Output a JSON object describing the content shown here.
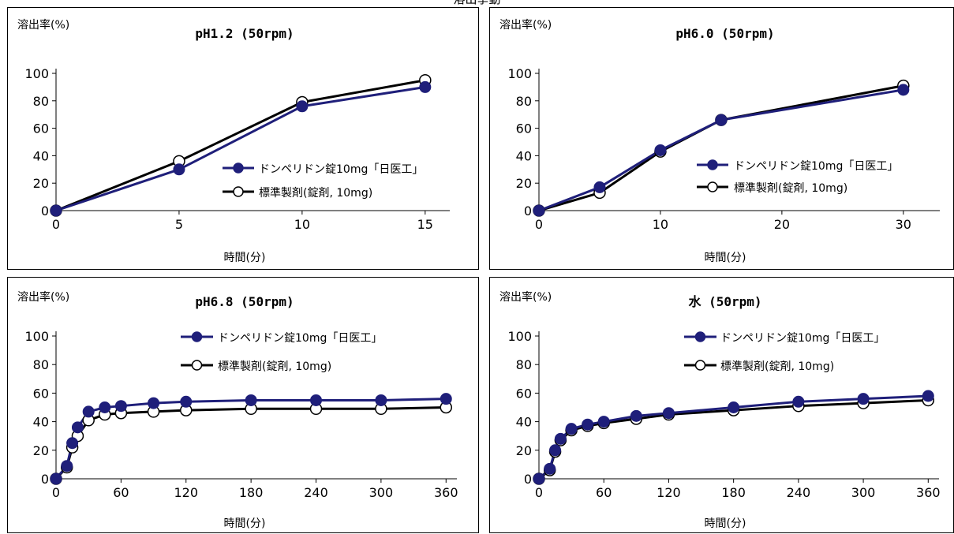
{
  "page": {
    "title": "溶出挙動"
  },
  "chart_data": [
    {
      "type": "line",
      "title": "pH1.2 (50rpm)",
      "ylabel": "溶出率(%)",
      "xlabel": "時間(分)",
      "xlim": [
        0,
        16
      ],
      "ylim": [
        0,
        100
      ],
      "xticks": [
        0,
        5,
        10,
        15
      ],
      "yticks": [
        0,
        20,
        40,
        60,
        80,
        100
      ],
      "grid": false,
      "legend": "center-right",
      "series": [
        {
          "name": "ドンペリドン錠10mg「日医工」",
          "color": "#1f1f7a",
          "marker": "filled",
          "x": [
            0,
            5,
            10,
            15
          ],
          "values": [
            0,
            30,
            76,
            90
          ]
        },
        {
          "name": "標準製剤(錠剤, 10mg)",
          "color": "#000000",
          "marker": "open",
          "x": [
            0,
            5,
            10,
            15
          ],
          "values": [
            0,
            36,
            79,
            95
          ]
        }
      ]
    },
    {
      "type": "line",
      "title": "pH6.0 (50rpm)",
      "ylabel": "溶出率(%)",
      "xlabel": "時間(分)",
      "xlim": [
        0,
        33
      ],
      "ylim": [
        0,
        100
      ],
      "xticks": [
        0,
        10,
        20,
        30
      ],
      "yticks": [
        0,
        20,
        40,
        60,
        80,
        100
      ],
      "grid": false,
      "legend": "center-right",
      "series": [
        {
          "name": "ドンペリドン錠10mg「日医工」",
          "color": "#1f1f7a",
          "marker": "filled",
          "x": [
            0,
            5,
            10,
            15,
            30
          ],
          "values": [
            0,
            17,
            44,
            66,
            88
          ]
        },
        {
          "name": "標準製剤(錠剤, 10mg)",
          "color": "#000000",
          "marker": "open",
          "x": [
            0,
            5,
            10,
            15,
            30
          ],
          "values": [
            0,
            13,
            43,
            66,
            91
          ]
        }
      ]
    },
    {
      "type": "line",
      "title": "pH6.8 (50rpm)",
      "ylabel": "溶出率(%)",
      "xlabel": "時間(分)",
      "xlim": [
        0,
        370
      ],
      "ylim": [
        0,
        100
      ],
      "xticks": [
        0,
        60,
        120,
        180,
        240,
        300,
        360
      ],
      "yticks": [
        0,
        20,
        40,
        60,
        80,
        100
      ],
      "grid": false,
      "legend": "top-center",
      "series": [
        {
          "name": "ドンペリドン錠10mg「日医工」",
          "color": "#1f1f7a",
          "marker": "filled",
          "x": [
            0,
            10,
            15,
            20,
            30,
            45,
            60,
            90,
            120,
            180,
            240,
            300,
            360
          ],
          "values": [
            0,
            9,
            25,
            36,
            47,
            50,
            51,
            53,
            54,
            55,
            55,
            55,
            56
          ]
        },
        {
          "name": "標準製剤(錠剤, 10mg)",
          "color": "#000000",
          "marker": "open",
          "x": [
            0,
            10,
            15,
            20,
            30,
            45,
            60,
            90,
            120,
            180,
            240,
            300,
            360
          ],
          "values": [
            0,
            8,
            22,
            30,
            41,
            45,
            46,
            47,
            48,
            49,
            49,
            49,
            50
          ]
        }
      ]
    },
    {
      "type": "line",
      "title": "水 (50rpm)",
      "ylabel": "溶出率(%)",
      "xlabel": "時間(分)",
      "xlim": [
        0,
        370
      ],
      "ylim": [
        0,
        100
      ],
      "xticks": [
        0,
        60,
        120,
        180,
        240,
        300,
        360
      ],
      "yticks": [
        0,
        20,
        40,
        60,
        80,
        100
      ],
      "grid": false,
      "legend": "top-center",
      "series": [
        {
          "name": "ドンペリドン錠10mg「日医工」",
          "color": "#1f1f7a",
          "marker": "filled",
          "x": [
            0,
            10,
            15,
            20,
            30,
            45,
            60,
            90,
            120,
            180,
            240,
            300,
            360
          ],
          "values": [
            0,
            7,
            20,
            28,
            35,
            38,
            40,
            44,
            46,
            50,
            54,
            56,
            58
          ]
        },
        {
          "name": "標準製剤(錠剤, 10mg)",
          "color": "#000000",
          "marker": "open",
          "x": [
            0,
            10,
            15,
            20,
            30,
            45,
            60,
            90,
            120,
            180,
            240,
            300,
            360
          ],
          "values": [
            0,
            6,
            19,
            27,
            34,
            37,
            39,
            42,
            45,
            48,
            51,
            53,
            55
          ]
        }
      ]
    }
  ]
}
